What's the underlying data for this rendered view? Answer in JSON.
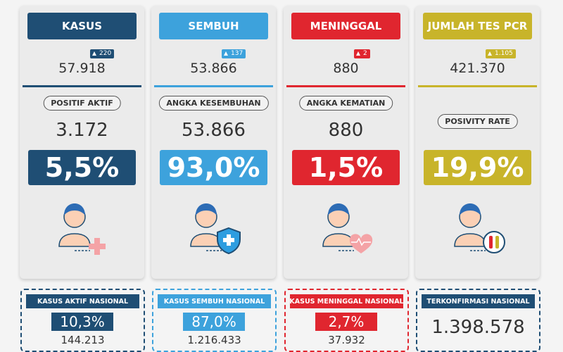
{
  "cards": [
    {
      "header": "KASUS",
      "increment": "220",
      "total": "57.918",
      "label": "POSITIF AKTIF",
      "count": "3.172",
      "percent": "5,5%"
    },
    {
      "header": "SEMBUH",
      "increment": "137",
      "total": "53.866",
      "label": "ANGKA KESEMBUHAN",
      "count": "53.866",
      "percent": "93,0%"
    },
    {
      "header": "MENINGGAL",
      "increment": "2",
      "total": "880",
      "label": "ANGKA KEMATIAN",
      "count": "880",
      "percent": "1,5%"
    },
    {
      "header": "JUMLAH TES PCR",
      "increment": "1.105",
      "total": "421.370",
      "label": "POSIVITY RATE",
      "percent": "19,9%"
    }
  ],
  "national": [
    {
      "label": "KASUS AKTIF NASIONAL",
      "percent": "10,3%",
      "count": "144.213"
    },
    {
      "label": "KASUS SEMBUH NASIONAL",
      "percent": "87,0%",
      "count": "1.216.433"
    },
    {
      "label": "KASUS MENINGGAL NASIONAL",
      "percent": "2,7%",
      "count": "37.932"
    },
    {
      "label": "TERKONFIRMASI NASIONAL",
      "count": "1.398.578"
    }
  ]
}
